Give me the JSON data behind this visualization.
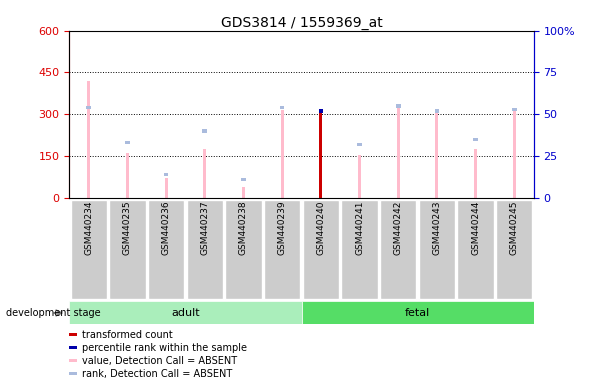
{
  "title": "GDS3814 / 1559369_at",
  "categories": [
    "GSM440234",
    "GSM440235",
    "GSM440236",
    "GSM440237",
    "GSM440238",
    "GSM440239",
    "GSM440240",
    "GSM440241",
    "GSM440242",
    "GSM440243",
    "GSM440244",
    "GSM440245"
  ],
  "groups": [
    "adult",
    "adult",
    "adult",
    "adult",
    "adult",
    "adult",
    "fetal",
    "fetal",
    "fetal",
    "fetal",
    "fetal",
    "fetal"
  ],
  "pink_values": [
    420,
    160,
    70,
    175,
    40,
    315,
    315,
    155,
    335,
    315,
    175,
    315
  ],
  "blue_rank_pct": [
    54,
    33,
    14,
    40,
    11,
    54,
    52,
    32,
    55,
    52,
    35,
    53
  ],
  "red_values": [
    0,
    0,
    0,
    0,
    0,
    0,
    315,
    0,
    0,
    0,
    0,
    0
  ],
  "dark_blue_pct": [
    0,
    0,
    0,
    0,
    0,
    0,
    52,
    0,
    0,
    0,
    0,
    0
  ],
  "ylim_left": [
    0,
    600
  ],
  "ylim_right": [
    0,
    100
  ],
  "yticks_left": [
    0,
    150,
    300,
    450,
    600
  ],
  "yticks_right": [
    0,
    25,
    50,
    75,
    100
  ],
  "adult_color": "#AAEEBB",
  "fetal_color": "#55DD66",
  "adult_indices": [
    0,
    1,
    2,
    3,
    4,
    5
  ],
  "fetal_indices": [
    6,
    7,
    8,
    9,
    10,
    11
  ],
  "pink_color": "#FFBBCC",
  "light_blue_color": "#AABBDD",
  "red_color": "#CC0000",
  "dark_blue_color": "#0000AA",
  "gray_color": "#CCCCCC",
  "legend_labels": [
    "transformed count",
    "percentile rank within the sample",
    "value, Detection Call = ABSENT",
    "rank, Detection Call = ABSENT"
  ],
  "legend_colors": [
    "#CC0000",
    "#0000AA",
    "#FFBBCC",
    "#AABBDD"
  ],
  "left_axis_color": "#DD0000",
  "right_axis_color": "#0000CC"
}
